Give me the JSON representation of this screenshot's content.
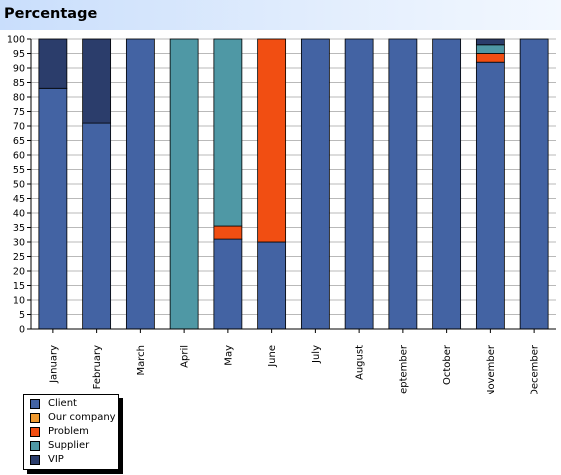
{
  "header": {
    "title": "Percentage"
  },
  "chart_data": {
    "type": "bar",
    "stacked": true,
    "title": "Percentage",
    "xlabel": "",
    "ylabel": "",
    "ylim": [
      0,
      100
    ],
    "yticks": [
      0,
      5,
      10,
      15,
      20,
      25,
      30,
      35,
      40,
      45,
      50,
      55,
      60,
      65,
      70,
      75,
      80,
      85,
      90,
      95,
      100
    ],
    "grid": true,
    "legend_position": "bottom-left",
    "categories": [
      "January",
      "February",
      "March",
      "April",
      "May",
      "June",
      "July",
      "August",
      "September",
      "October",
      "November",
      "December"
    ],
    "series": [
      {
        "name": "Client",
        "color": "#4363a3",
        "values": [
          83,
          71,
          100,
          0,
          31,
          30,
          100,
          100,
          100,
          100,
          92,
          100
        ]
      },
      {
        "name": "Our company",
        "color": "#f09a30",
        "values": [
          0,
          0,
          0,
          0,
          0,
          0,
          0,
          0,
          0,
          0,
          0,
          0
        ]
      },
      {
        "name": "Problem",
        "color": "#f14e12",
        "values": [
          0,
          0,
          0,
          0,
          4.5,
          70,
          0,
          0,
          0,
          0,
          3,
          0
        ]
      },
      {
        "name": "Supplier",
        "color": "#4f98a5",
        "values": [
          0,
          0,
          0,
          100,
          64.5,
          0,
          0,
          0,
          0,
          0,
          3,
          0
        ]
      },
      {
        "name": "VIP",
        "color": "#2b3d6b",
        "values": [
          17,
          29,
          0,
          0,
          0,
          0,
          0,
          0,
          0,
          0,
          2,
          0
        ]
      }
    ]
  }
}
